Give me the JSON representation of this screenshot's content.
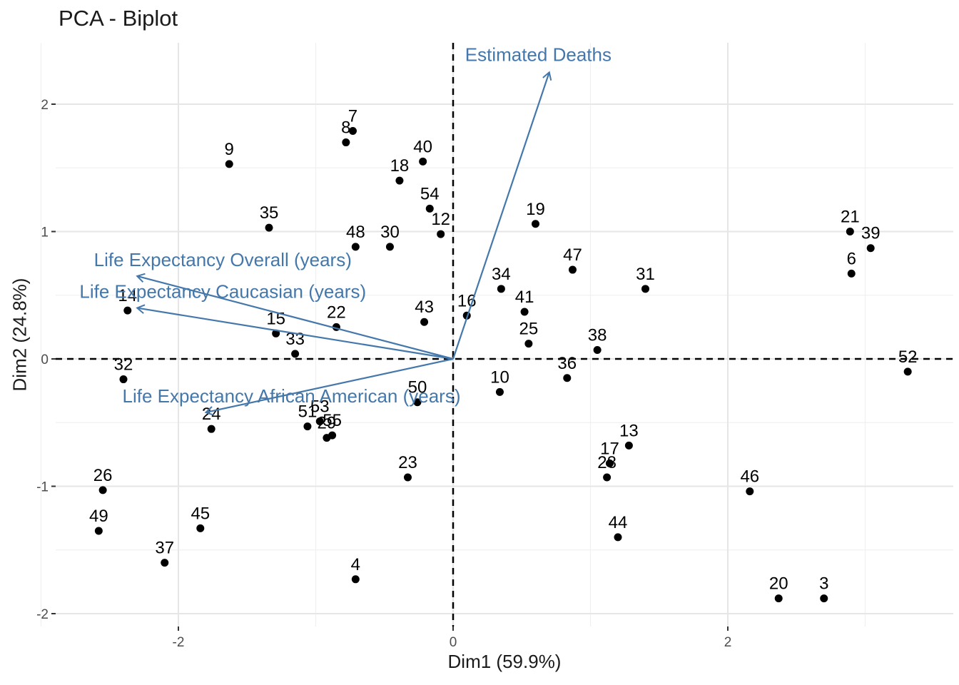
{
  "chart_data": {
    "type": "scatter",
    "title": "PCA - Biplot",
    "xlabel": "Dim1 (59.9%)",
    "ylabel": "Dim2 (24.8%)",
    "xlim": [
      -3.0,
      3.6
    ],
    "ylim": [
      -2.1,
      2.45
    ],
    "x_ticks": [
      -2,
      0,
      2
    ],
    "y_ticks": [
      -2,
      -1,
      0,
      1,
      2
    ],
    "x_tick_labels": [
      "-2",
      "0",
      "2"
    ],
    "y_tick_labels": [
      "-2",
      "-1",
      "0",
      "1",
      "2"
    ],
    "grid": true,
    "reference_lines": {
      "x": 0,
      "y": 0,
      "style": "dashed"
    },
    "arrow_color": "#4477aa",
    "point_color": "#000000",
    "points": [
      {
        "label": "3",
        "x": 2.7,
        "y": -1.88
      },
      {
        "label": "4",
        "x": -0.71,
        "y": -1.73
      },
      {
        "label": "6",
        "x": 2.9,
        "y": 0.67
      },
      {
        "label": "7",
        "x": -0.73,
        "y": 1.79
      },
      {
        "label": "8",
        "x": -0.78,
        "y": 1.7
      },
      {
        "label": "9",
        "x": -1.63,
        "y": 1.53
      },
      {
        "label": "10",
        "x": 0.34,
        "y": -0.26
      },
      {
        "label": "12",
        "x": -0.09,
        "y": 0.98
      },
      {
        "label": "13",
        "x": 1.28,
        "y": -0.68
      },
      {
        "label": "14",
        "x": -2.37,
        "y": 0.38
      },
      {
        "label": "15",
        "x": -1.29,
        "y": 0.2
      },
      {
        "label": "16",
        "x": 0.1,
        "y": 0.34
      },
      {
        "label": "17",
        "x": 1.14,
        "y": -0.82
      },
      {
        "label": "18",
        "x": -0.39,
        "y": 1.4
      },
      {
        "label": "19",
        "x": 0.6,
        "y": 1.06
      },
      {
        "label": "20",
        "x": 2.37,
        "y": -1.88
      },
      {
        "label": "21",
        "x": 2.89,
        "y": 1.0
      },
      {
        "label": "22",
        "x": -0.85,
        "y": 0.25
      },
      {
        "label": "23",
        "x": -0.33,
        "y": -0.93
      },
      {
        "label": "24",
        "x": -1.76,
        "y": -0.55
      },
      {
        "label": "25",
        "x": 0.55,
        "y": 0.12
      },
      {
        "label": "26",
        "x": -2.55,
        "y": -1.03
      },
      {
        "label": "28",
        "x": 1.12,
        "y": -0.93
      },
      {
        "label": "29",
        "x": -0.92,
        "y": -0.62
      },
      {
        "label": "30",
        "x": -0.46,
        "y": 0.88
      },
      {
        "label": "31",
        "x": 1.4,
        "y": 0.55
      },
      {
        "label": "32",
        "x": -2.4,
        "y": -0.16
      },
      {
        "label": "33",
        "x": -1.15,
        "y": 0.04
      },
      {
        "label": "34",
        "x": 0.35,
        "y": 0.55
      },
      {
        "label": "35",
        "x": -1.34,
        "y": 1.03
      },
      {
        "label": "36",
        "x": 0.83,
        "y": -0.15
      },
      {
        "label": "37",
        "x": -2.1,
        "y": -1.6
      },
      {
        "label": "38",
        "x": 1.05,
        "y": 0.07
      },
      {
        "label": "39",
        "x": 3.04,
        "y": 0.87
      },
      {
        "label": "40",
        "x": -0.22,
        "y": 1.55
      },
      {
        "label": "41",
        "x": 0.52,
        "y": 0.37
      },
      {
        "label": "43",
        "x": -0.21,
        "y": 0.29
      },
      {
        "label": "44",
        "x": 1.2,
        "y": -1.4
      },
      {
        "label": "45",
        "x": -1.84,
        "y": -1.33
      },
      {
        "label": "46",
        "x": 2.16,
        "y": -1.04
      },
      {
        "label": "47",
        "x": 0.87,
        "y": 0.7
      },
      {
        "label": "48",
        "x": -0.71,
        "y": 0.88
      },
      {
        "label": "49",
        "x": -2.58,
        "y": -1.35
      },
      {
        "label": "50",
        "x": -0.26,
        "y": -0.34
      },
      {
        "label": "51",
        "x": -1.06,
        "y": -0.53
      },
      {
        "label": "52",
        "x": 3.31,
        "y": -0.1
      },
      {
        "label": "53",
        "x": -0.97,
        "y": -0.49
      },
      {
        "label": "54",
        "x": -0.17,
        "y": 1.18
      },
      {
        "label": "55",
        "x": -0.88,
        "y": -0.6
      }
    ],
    "variables": [
      {
        "label": "Estimated Deaths",
        "x": 0.7,
        "y": 2.25
      },
      {
        "label": "Life Expectancy Overall (years)",
        "x": -2.3,
        "y": 0.65
      },
      {
        "label": "Life Expectancy Caucasian (years)",
        "x": -2.3,
        "y": 0.4
      },
      {
        "label": "Life Expectancy African American (years)",
        "x": -1.8,
        "y": -0.42
      }
    ]
  }
}
